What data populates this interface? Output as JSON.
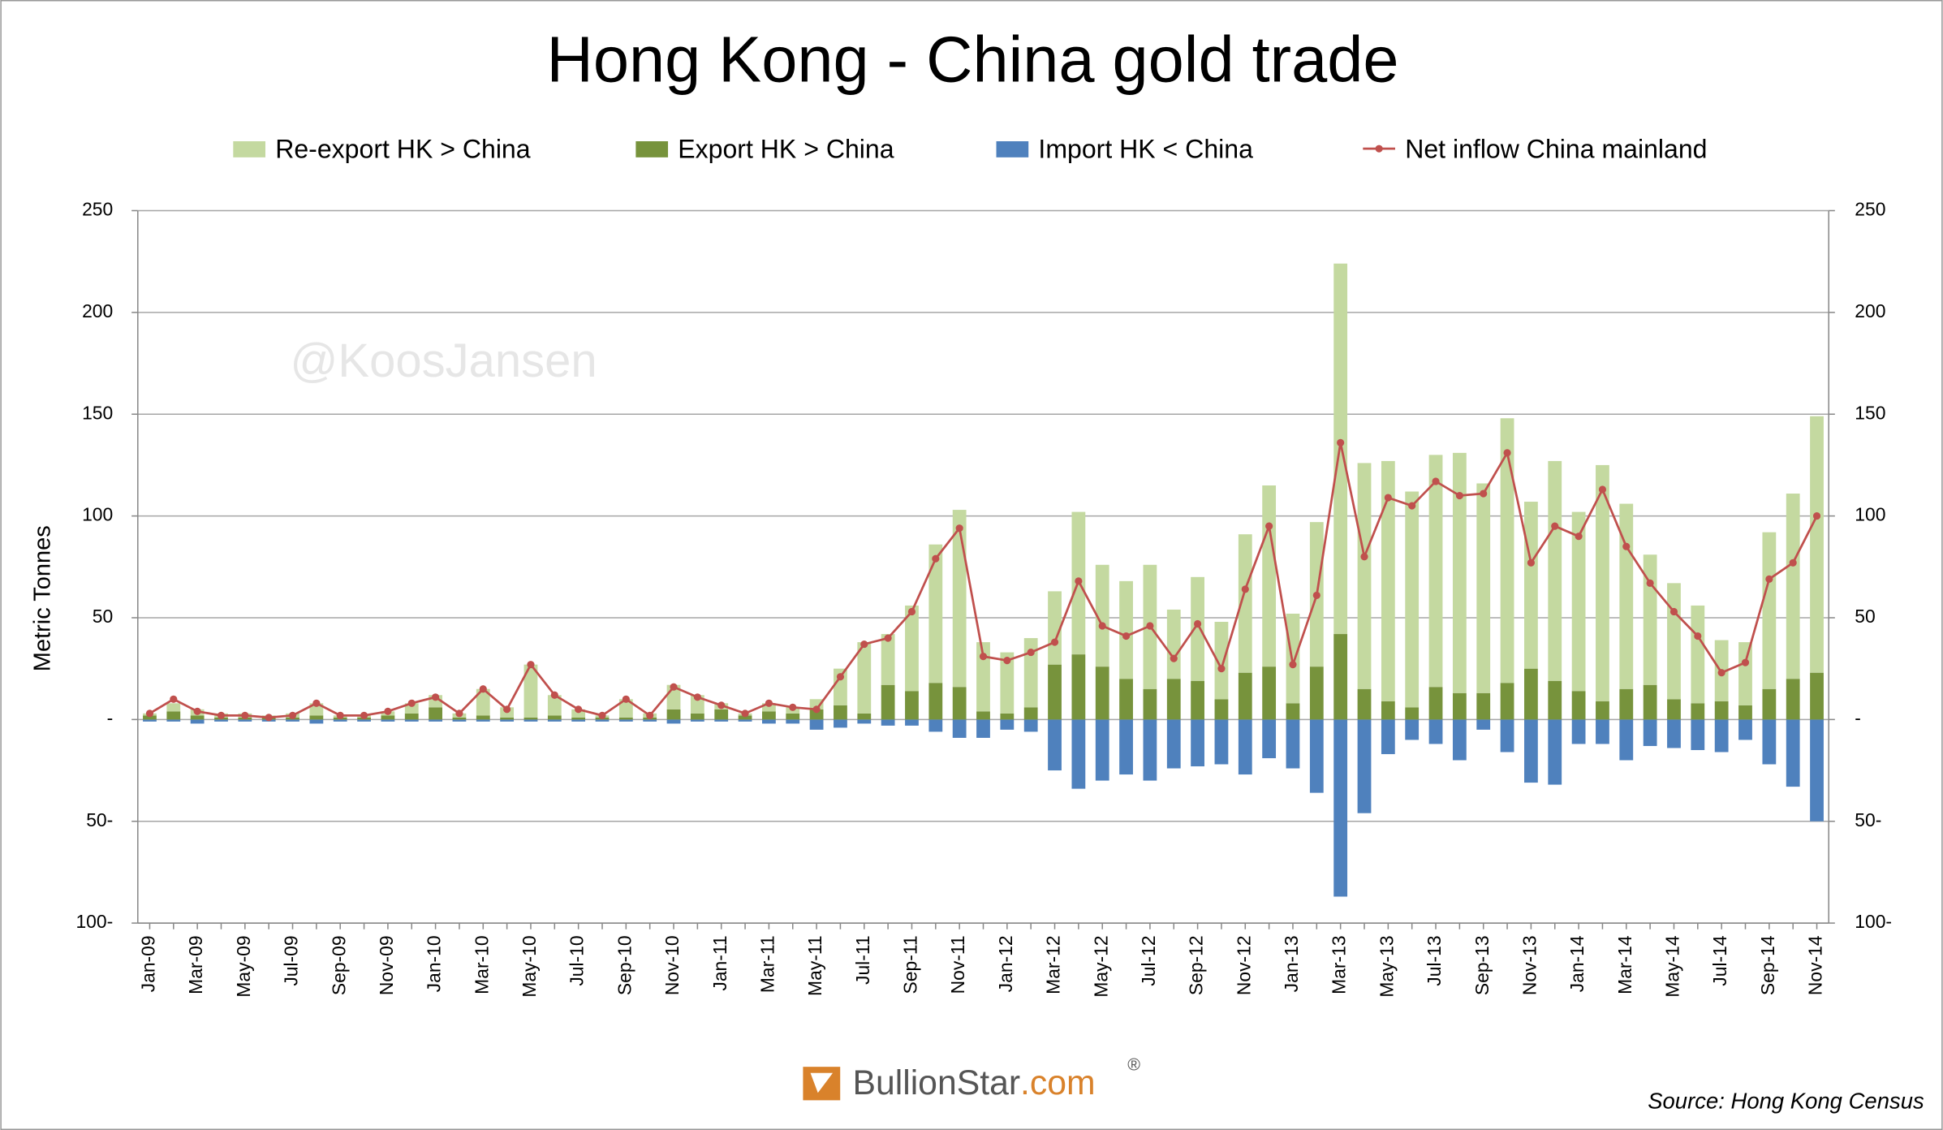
{
  "chart_data": {
    "type": "bar",
    "title": "Hong Kong - China gold trade",
    "y_label": "Metric Tonnes",
    "watermark": "@KoosJansen",
    "logo_name": "BullionStar",
    "logo_suffix": ".com",
    "logo_mark": "®",
    "source": "Source: Hong Kong Census",
    "categories": [
      "Jan-09",
      null,
      "Mar-09",
      null,
      "May-09",
      null,
      "Jul-09",
      null,
      "Sep-09",
      null,
      "Nov-09",
      null,
      "Jan-10",
      null,
      "Mar-10",
      null,
      "May-10",
      null,
      "Jul-10",
      null,
      "Sep-10",
      null,
      "Nov-10",
      null,
      "Jan-11",
      null,
      "Mar-11",
      null,
      "May-11",
      null,
      "Jul-11",
      null,
      "Sep-11",
      null,
      "Nov-11",
      null,
      "Jan-12",
      null,
      "Mar-12",
      null,
      "May-12",
      null,
      "Jul-12",
      null,
      "Sep-12",
      null,
      "Nov-12",
      null,
      "Jan-13",
      null,
      "Mar-13",
      null,
      "May-13",
      null,
      "Jul-13",
      null,
      "Sep-13",
      null,
      "Nov-13",
      null,
      "Jan-14",
      null,
      "Mar-14",
      null,
      "May-14",
      null,
      "Jul-14",
      null,
      "Sep-14",
      null,
      "Nov-14"
    ],
    "series": [
      {
        "name": "Re-export HK > China",
        "color": "#c4d9a0",
        "type": "bar",
        "values": [
          1,
          4,
          3,
          2,
          2,
          1,
          2,
          6,
          1,
          1,
          2,
          5,
          6,
          2,
          13,
          5,
          26,
          10,
          4,
          1,
          9,
          2,
          12,
          9,
          3,
          1,
          4,
          3,
          5,
          18,
          35,
          25,
          42,
          68,
          87,
          34,
          30,
          34,
          36,
          70,
          50,
          48,
          61,
          34,
          51,
          38,
          68,
          89,
          44,
          71,
          182,
          111,
          118,
          106,
          114,
          118,
          103,
          130,
          82,
          108,
          88,
          116,
          91,
          64,
          57,
          48,
          30,
          31,
          77,
          91,
          126
        ]
      },
      {
        "name": "Export HK > China",
        "color": "#77933c",
        "type": "bar",
        "values": [
          2,
          4,
          2,
          1,
          1,
          1,
          1,
          2,
          1,
          1,
          2,
          3,
          6,
          1,
          2,
          1,
          1,
          2,
          1,
          1,
          1,
          1,
          5,
          3,
          5,
          2,
          4,
          3,
          5,
          7,
          3,
          17,
          14,
          18,
          16,
          4,
          3,
          6,
          27,
          32,
          26,
          20,
          15,
          20,
          19,
          10,
          23,
          26,
          8,
          26,
          42,
          15,
          9,
          6,
          16,
          13,
          13,
          18,
          25,
          19,
          14,
          9,
          15,
          17,
          10,
          8,
          9,
          7,
          15,
          20,
          23
        ]
      },
      {
        "name": "Import HK < China",
        "color": "#4f81bd",
        "type": "bar",
        "values": [
          -1,
          -1,
          -2,
          -1,
          -1,
          -1,
          -1,
          -2,
          -1,
          -1,
          -1,
          -1,
          -1,
          -1,
          -1,
          -1,
          -1,
          -1,
          -1,
          -1,
          -1,
          -1,
          -2,
          -1,
          -1,
          -1,
          -2,
          -2,
          -5,
          -4,
          -2,
          -3,
          -3,
          -6,
          -9,
          -9,
          -5,
          -6,
          -25,
          -34,
          -30,
          -27,
          -30,
          -24,
          -23,
          -22,
          -27,
          -19,
          -24,
          -36,
          -87,
          -46,
          -17,
          -10,
          -12,
          -20,
          -5,
          -16,
          -31,
          -32,
          -12,
          -12,
          -20,
          -13,
          -14,
          -15,
          -16,
          -10,
          -22,
          -33,
          -50
        ]
      },
      {
        "name": "Net inflow China mainland",
        "color": "#c0504d",
        "type": "line",
        "values": [
          3,
          10,
          4,
          2,
          2,
          1,
          2,
          8,
          2,
          2,
          4,
          8,
          11,
          3,
          15,
          5,
          27,
          12,
          5,
          2,
          10,
          2,
          16,
          11,
          7,
          3,
          8,
          6,
          5,
          21,
          37,
          40,
          53,
          79,
          94,
          31,
          29,
          33,
          38,
          68,
          46,
          41,
          46,
          30,
          47,
          25,
          64,
          95,
          27,
          61,
          136,
          80,
          109,
          105,
          117,
          110,
          111,
          131,
          77,
          95,
          90,
          113,
          85,
          67,
          53,
          41,
          23,
          28,
          69,
          77,
          100
        ]
      }
    ],
    "ylim": [
      -100,
      250
    ],
    "yticks": [
      {
        "value": -100,
        "label": "100-"
      },
      {
        "value": -50,
        "label": "50-"
      },
      {
        "value": 0,
        "label": "-"
      },
      50,
      100,
      150,
      200,
      250
    ],
    "y2lim": [
      -100,
      250
    ],
    "y2ticks": [
      {
        "value": -100,
        "label": "100-"
      },
      {
        "value": -50,
        "label": "50-"
      },
      {
        "value": 0,
        "label": "-"
      },
      50,
      100,
      150,
      200,
      250
    ],
    "grid": true
  }
}
